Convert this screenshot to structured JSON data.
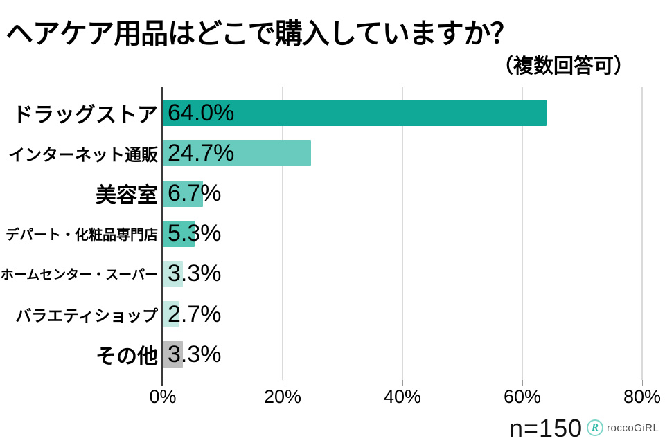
{
  "header": {
    "title": "ヘアケア用品はどこで購入していますか？",
    "subtitle": "（複数回答可）"
  },
  "footer": {
    "sample_size": "n=150",
    "brand_name": "roccoGiRL",
    "brand_icon": "R"
  },
  "chart_data": {
    "type": "bar",
    "orientation": "horizontal",
    "title": "ヘアケア用品はどこで購入していますか？",
    "subtitle": "（複数回答可）",
    "categories": [
      "ドラッグストア",
      "インターネット通販",
      "美容室",
      "デパート・化粧品専門店",
      "ホームセンター・スーパー",
      "バラエティショップ",
      "その他"
    ],
    "values": [
      64.0,
      24.7,
      6.7,
      5.3,
      3.3,
      2.7,
      3.3
    ],
    "value_labels": [
      "64.0%",
      "24.7%",
      "6.7%",
      "5.3%",
      "3.3%",
      "2.7%",
      "3.3%"
    ],
    "bar_colors": [
      "#10A997",
      "#68CBBD",
      "#68CBBD",
      "#55C6B4",
      "#C2E8E1",
      "#C2E8E1",
      "#BDBDBD"
    ],
    "x_ticks": [
      "0%",
      "20%",
      "40%",
      "60%",
      "80%"
    ],
    "x_tick_values": [
      0,
      20,
      40,
      60,
      80
    ],
    "xlim": [
      0,
      83.8
    ],
    "grid": true,
    "legend": "none",
    "gridline_color": "#DADADA",
    "axis_color": "#3a3a3a",
    "tick_color": "#9a9a9a",
    "sample_size": "n=150"
  }
}
